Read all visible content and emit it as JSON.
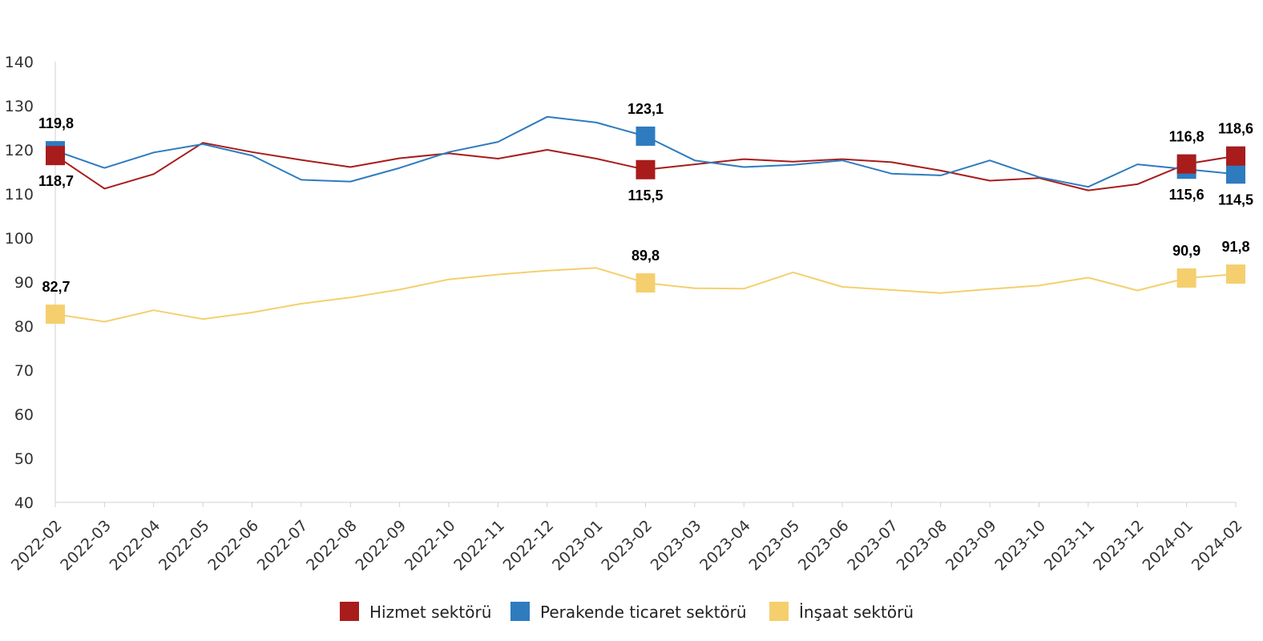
{
  "chart_data": {
    "type": "line",
    "title": "",
    "xlabel": "",
    "ylabel": "",
    "ylim": [
      40,
      140
    ],
    "yticks": [
      40,
      50,
      60,
      70,
      80,
      90,
      100,
      110,
      120,
      130,
      140
    ],
    "grid": false,
    "legend": "bottom",
    "categories": [
      "2022-02",
      "2022-03",
      "2022-04",
      "2022-05",
      "2022-06",
      "2022-07",
      "2022-08",
      "2022-09",
      "2022-10",
      "2022-11",
      "2022-12",
      "2023-01",
      "2023-02",
      "2023-03",
      "2023-04",
      "2023-05",
      "2023-06",
      "2023-07",
      "2023-08",
      "2023-09",
      "2023-10",
      "2023-11",
      "2023-12",
      "2024-01",
      "2024-02"
    ],
    "series": [
      {
        "name": "Hizmet sektörü",
        "color": "#A81C1C",
        "values": [
          118.7,
          111.2,
          114.5,
          121.6,
          119.5,
          117.7,
          116.1,
          118.1,
          119.2,
          118.0,
          120.0,
          118.0,
          115.5,
          116.7,
          117.9,
          117.3,
          117.9,
          117.2,
          115.3,
          113.0,
          113.6,
          110.8,
          112.2,
          116.8,
          118.6
        ],
        "labels": [
          {
            "index": 0,
            "text": "118,7",
            "pos": "below"
          },
          {
            "index": 12,
            "text": "115,5",
            "pos": "below"
          },
          {
            "index": 23,
            "text": "116,8",
            "pos": "above"
          },
          {
            "index": 24,
            "text": "118,6",
            "pos": "above"
          }
        ]
      },
      {
        "name": "Perakende ticaret sektörü",
        "color": "#2E7BBF",
        "values": [
          119.8,
          115.9,
          119.4,
          121.3,
          118.7,
          113.2,
          112.8,
          115.9,
          119.5,
          121.8,
          127.5,
          126.2,
          123.1,
          117.6,
          116.1,
          116.6,
          117.6,
          114.6,
          114.2,
          117.6,
          113.8,
          111.6,
          116.7,
          115.6,
          114.5
        ],
        "labels": [
          {
            "index": 0,
            "text": "119,8",
            "pos": "above"
          },
          {
            "index": 12,
            "text": "123,1",
            "pos": "above"
          },
          {
            "index": 23,
            "text": "115,6",
            "pos": "below"
          },
          {
            "index": 24,
            "text": "114,5",
            "pos": "below"
          }
        ]
      },
      {
        "name": "İnşaat sektörü",
        "color": "#F5CF6E",
        "values": [
          82.7,
          81.0,
          83.6,
          81.6,
          83.1,
          85.1,
          86.5,
          88.3,
          90.6,
          91.7,
          92.6,
          93.2,
          89.8,
          88.6,
          88.5,
          92.2,
          88.9,
          88.2,
          87.5,
          88.4,
          89.2,
          91.0,
          88.1,
          90.9,
          91.8
        ],
        "labels": [
          {
            "index": 0,
            "text": "82,7",
            "pos": "above"
          },
          {
            "index": 12,
            "text": "89,8",
            "pos": "above"
          },
          {
            "index": 23,
            "text": "90,9",
            "pos": "above"
          },
          {
            "index": 24,
            "text": "91,8",
            "pos": "above"
          }
        ]
      }
    ]
  }
}
